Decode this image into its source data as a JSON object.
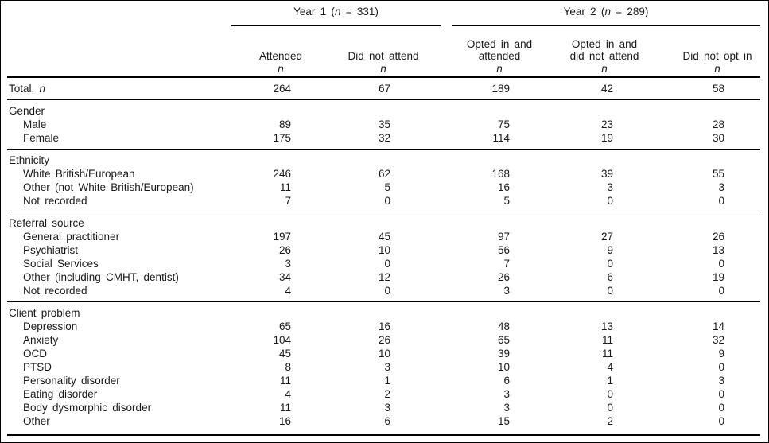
{
  "page": {
    "background": "#ffffff",
    "text_color": "#1a1a1a",
    "rule_color": "#000000"
  },
  "table": {
    "spanners": [
      {
        "pre": "Year 1 (",
        "italic": "n",
        "post": " = 331)"
      },
      {
        "pre": "Year 2 (",
        "italic": "n",
        "post": " = 289)"
      }
    ],
    "columns": [
      {
        "line1": "",
        "line2": "Attended",
        "sub": "n"
      },
      {
        "line1": "",
        "line2": "Did not attend",
        "sub": "n"
      },
      {
        "line1": "Opted in and",
        "line2": "attended",
        "sub": "n"
      },
      {
        "line1": "Opted in and",
        "line2": "did not attend",
        "sub": "n"
      },
      {
        "line1": "",
        "line2": "Did not opt in",
        "sub": "n"
      }
    ],
    "sections": [
      {
        "title": "",
        "rows": [
          {
            "label": "Total,",
            "label_italic": "n",
            "indent": false,
            "values": [
              "264",
              "67",
              "189",
              "42",
              "58"
            ]
          }
        ]
      },
      {
        "title": "Gender",
        "rows": [
          {
            "label": "Male",
            "indent": true,
            "values": [
              "89",
              "35",
              "75",
              "23",
              "28"
            ]
          },
          {
            "label": "Female",
            "indent": true,
            "values": [
              "175",
              "32",
              "114",
              "19",
              "30"
            ]
          }
        ]
      },
      {
        "title": "Ethnicity",
        "rows": [
          {
            "label": "White British/European",
            "indent": true,
            "values": [
              "246",
              "62",
              "168",
              "39",
              "55"
            ]
          },
          {
            "label": "Other (not White British/European)",
            "indent": true,
            "values": [
              "11",
              "5",
              "16",
              "3",
              "3"
            ]
          },
          {
            "label": "Not recorded",
            "indent": true,
            "values": [
              "7",
              "0",
              "5",
              "0",
              "0"
            ]
          }
        ]
      },
      {
        "title": "Referral source",
        "rows": [
          {
            "label": "General practitioner",
            "indent": true,
            "values": [
              "197",
              "45",
              "97",
              "27",
              "26"
            ]
          },
          {
            "label": "Psychiatrist",
            "indent": true,
            "values": [
              "26",
              "10",
              "56",
              "9",
              "13"
            ]
          },
          {
            "label": "Social Services",
            "indent": true,
            "values": [
              "3",
              "0",
              "7",
              "0",
              "0"
            ]
          },
          {
            "label": "Other (including CMHT, dentist)",
            "indent": true,
            "values": [
              "34",
              "12",
              "26",
              "6",
              "19"
            ]
          },
          {
            "label": "Not recorded",
            "indent": true,
            "values": [
              "4",
              "0",
              "3",
              "0",
              "0"
            ]
          }
        ]
      },
      {
        "title": "Client problem",
        "rows": [
          {
            "label": "Depression",
            "indent": true,
            "values": [
              "65",
              "16",
              "48",
              "13",
              "14"
            ]
          },
          {
            "label": "Anxiety",
            "indent": true,
            "values": [
              "104",
              "26",
              "65",
              "11",
              "32"
            ]
          },
          {
            "label": "OCD",
            "indent": true,
            "values": [
              "45",
              "10",
              "39",
              "11",
              "9"
            ]
          },
          {
            "label": "PTSD",
            "indent": true,
            "values": [
              "8",
              "3",
              "10",
              "4",
              "0"
            ]
          },
          {
            "label": "Personality disorder",
            "indent": true,
            "values": [
              "11",
              "1",
              "6",
              "1",
              "3"
            ]
          },
          {
            "label": "Eating disorder",
            "indent": true,
            "values": [
              "4",
              "2",
              "3",
              "0",
              "0"
            ]
          },
          {
            "label": "Body dysmorphic disorder",
            "indent": true,
            "values": [
              "11",
              "3",
              "3",
              "0",
              "0"
            ]
          },
          {
            "label": "Other",
            "indent": true,
            "values": [
              "16",
              "6",
              "15",
              "2",
              "0"
            ]
          }
        ]
      }
    ]
  }
}
